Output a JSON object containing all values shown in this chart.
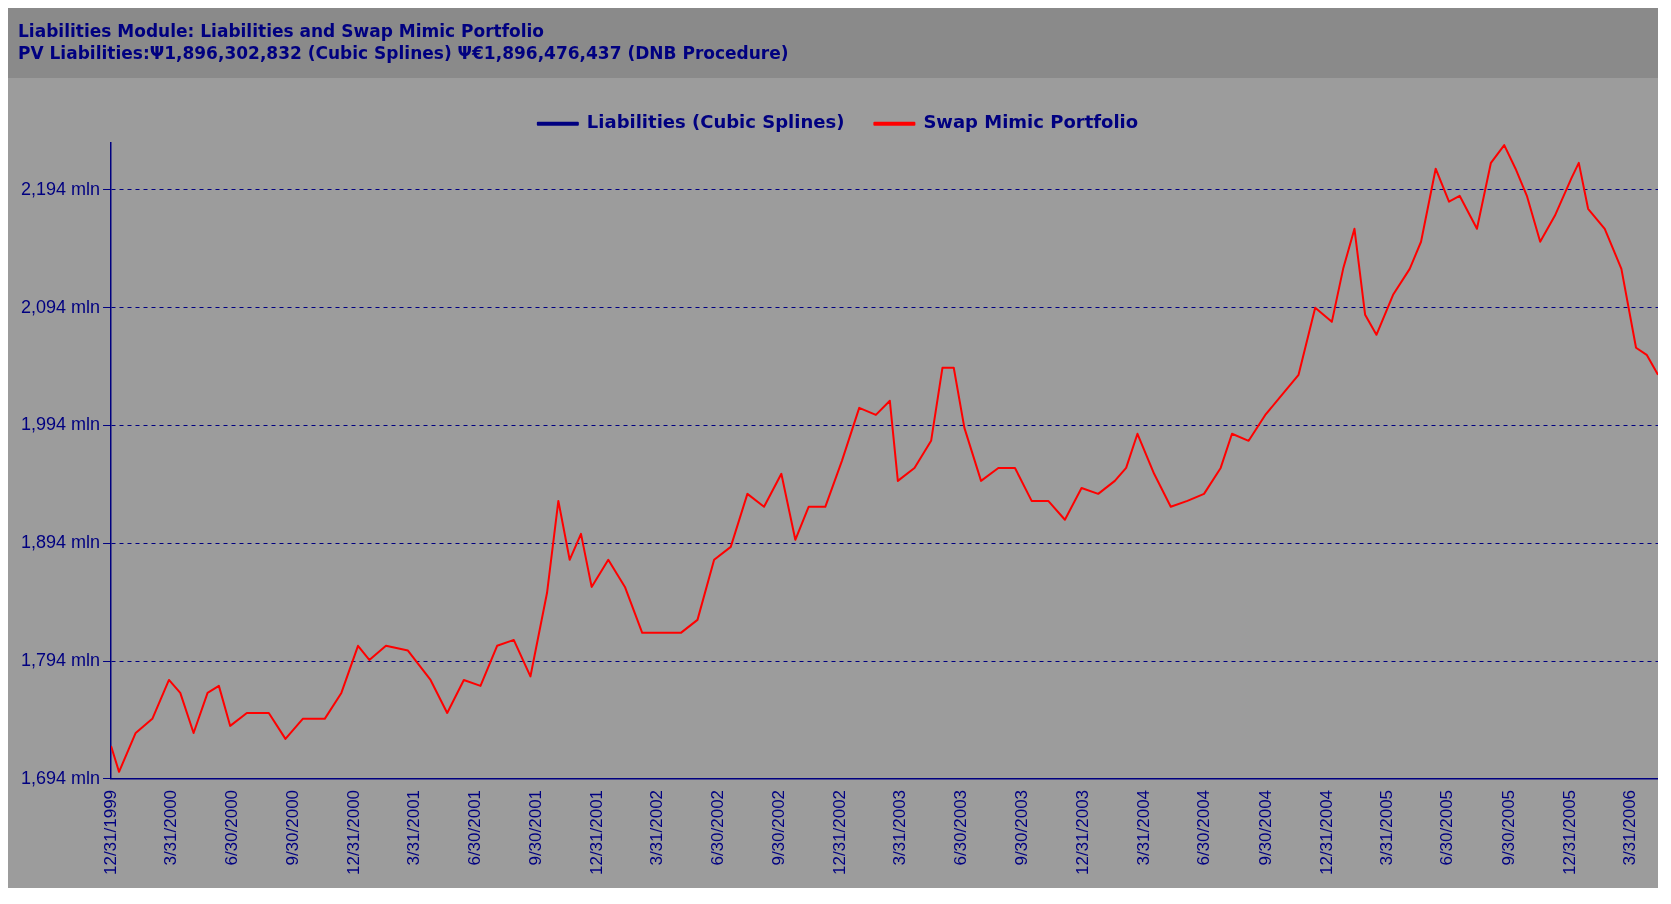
{
  "chart_data": {
    "type": "line",
    "title": "Liabilities Module: Liabilities and Swap Mimic Portfolio",
    "subtitle": "PV Liabilities:Ψ1,896,302,832 (Cubic Splines) Ψ€1,896,476,437 (DNB Procedure)",
    "x": [
      "1999-12-31",
      "2000-01-12",
      "2000-02-06",
      "2000-03-02",
      "2000-03-27",
      "2000-04-13",
      "2000-05-03",
      "2000-05-24",
      "2000-06-10",
      "2000-06-27",
      "2000-07-22",
      "2000-08-24",
      "2000-09-18",
      "2000-10-14",
      "2000-11-16",
      "2000-12-11",
      "2001-01-05",
      "2001-01-22",
      "2001-02-16",
      "2001-03-21",
      "2001-04-24",
      "2001-05-19",
      "2001-06-13",
      "2001-07-08",
      "2001-08-02",
      "2001-08-27",
      "2001-09-21",
      "2001-10-16",
      "2001-11-02",
      "2001-11-19",
      "2001-12-06",
      "2001-12-22",
      "2002-01-16",
      "2002-02-10",
      "2002-03-08",
      "2002-04-02",
      "2002-05-05",
      "2002-05-30",
      "2002-06-24",
      "2002-07-19",
      "2002-08-13",
      "2002-09-07",
      "2002-10-03",
      "2002-10-24",
      "2002-11-13",
      "2002-12-08",
      "2003-01-02",
      "2003-01-28",
      "2003-02-22",
      "2003-03-15",
      "2003-03-27",
      "2003-04-21",
      "2003-05-16",
      "2003-06-02",
      "2003-06-19",
      "2003-07-05",
      "2003-07-30",
      "2003-08-25",
      "2003-09-19",
      "2003-10-14",
      "2003-11-08",
      "2003-12-03",
      "2003-12-28",
      "2004-01-22",
      "2004-02-16",
      "2004-03-04",
      "2004-03-21",
      "2004-04-15",
      "2004-05-10",
      "2004-06-04",
      "2004-06-29",
      "2004-07-24",
      "2004-08-10",
      "2004-09-04",
      "2004-09-29",
      "2004-10-24",
      "2004-11-18",
      "2004-12-13",
      "2005-01-07",
      "2005-01-24",
      "2005-02-10",
      "2005-02-26",
      "2005-03-15",
      "2005-04-09",
      "2005-05-04",
      "2005-05-21",
      "2005-06-12",
      "2005-07-02",
      "2005-07-18",
      "2005-08-13",
      "2005-09-03",
      "2005-09-23",
      "2005-10-10",
      "2005-10-27",
      "2005-11-16",
      "2005-12-08",
      "2006-01-02",
      "2006-01-13",
      "2006-01-27",
      "2006-02-21",
      "2006-03-18",
      "2006-04-09",
      "2006-04-25",
      "2006-05-12"
    ],
    "series": [
      {
        "name": "Liabilities (Cubic Splines)",
        "color": "#000080",
        "values": [
          null,
          null,
          null,
          null,
          null,
          null,
          null,
          null,
          null,
          null,
          null,
          null,
          null,
          null,
          null,
          null,
          null,
          null,
          null,
          null,
          null,
          null,
          null,
          null,
          null,
          null,
          null,
          null,
          null,
          null,
          null,
          null,
          null,
          null,
          null,
          null,
          null,
          null,
          null,
          null,
          null,
          null,
          null,
          null,
          null,
          null,
          null,
          null,
          null,
          null,
          null,
          null,
          null,
          null,
          null,
          null,
          null,
          null,
          null,
          null,
          null,
          null,
          null,
          null,
          null,
          null,
          null,
          null,
          null,
          null,
          null,
          null,
          null,
          null,
          null,
          null,
          null,
          null,
          null,
          null,
          null,
          null,
          null,
          null,
          null,
          null,
          null,
          null,
          null,
          null,
          null,
          null,
          null,
          null,
          null,
          null,
          null,
          null,
          null,
          null,
          null,
          null,
          null,
          null
        ]
      },
      {
        "name": "Swap Mimic Portfolio",
        "color": "#ff0000",
        "values": [
          1722,
          1700,
          1733,
          1745,
          1778,
          1767,
          1733,
          1767,
          1773,
          1739,
          1750,
          1750,
          1728,
          1745,
          1745,
          1767,
          1807,
          1795,
          1807,
          1803,
          1778,
          1750,
          1778,
          1773,
          1807,
          1812,
          1781,
          1852,
          1930,
          1880,
          1902,
          1857,
          1880,
          1857,
          1818,
          1818,
          1818,
          1829,
          1880,
          1891,
          1936,
          1925,
          1953,
          1897,
          1925,
          1925,
          1964,
          2009,
          2003,
          2015,
          1947,
          1958,
          1981,
          2043,
          2043,
          1992,
          1947,
          1958,
          1958,
          1930,
          1930,
          1914,
          1941,
          1936,
          1947,
          1958,
          1987,
          1953,
          1925,
          1930,
          1936,
          1958,
          1987,
          1981,
          2003,
          2020,
          2037,
          2094,
          2082,
          2127,
          2161,
          2088,
          2071,
          2105,
          2127,
          2150,
          2212,
          2184,
          2189,
          2161,
          2217,
          2232,
          2212,
          2189,
          2150,
          2172,
          2204,
          2217,
          2178,
          2161,
          2127,
          2060,
          2054,
          2037
        ]
      }
    ],
    "xlim": [
      "1999-12-31",
      "2006-05-12"
    ],
    "xticks": [
      {
        "value": "1999-12-31",
        "label": "12/31/1999"
      },
      {
        "value": "2000-03-31",
        "label": "3/31/2000"
      },
      {
        "value": "2000-06-30",
        "label": "6/30/2000"
      },
      {
        "value": "2000-09-30",
        "label": "9/30/2000"
      },
      {
        "value": "2000-12-31",
        "label": "12/31/2000"
      },
      {
        "value": "2001-03-31",
        "label": "3/31/2001"
      },
      {
        "value": "2001-06-30",
        "label": "6/30/2001"
      },
      {
        "value": "2001-09-30",
        "label": "9/30/2001"
      },
      {
        "value": "2001-12-31",
        "label": "12/31/2001"
      },
      {
        "value": "2002-03-31",
        "label": "3/31/2002"
      },
      {
        "value": "2002-06-30",
        "label": "6/30/2002"
      },
      {
        "value": "2002-09-30",
        "label": "9/30/2002"
      },
      {
        "value": "2002-12-31",
        "label": "12/31/2002"
      },
      {
        "value": "2003-03-31",
        "label": "3/31/2003"
      },
      {
        "value": "2003-06-30",
        "label": "6/30/2003"
      },
      {
        "value": "2003-09-30",
        "label": "9/30/2003"
      },
      {
        "value": "2003-12-31",
        "label": "12/31/2003"
      },
      {
        "value": "2004-03-31",
        "label": "3/31/2004"
      },
      {
        "value": "2004-06-30",
        "label": "6/30/2004"
      },
      {
        "value": "2004-09-30",
        "label": "9/30/2004"
      },
      {
        "value": "2004-12-31",
        "label": "12/31/2004"
      },
      {
        "value": "2005-03-31",
        "label": "3/31/2005"
      },
      {
        "value": "2005-06-30",
        "label": "6/30/2005"
      },
      {
        "value": "2005-09-30",
        "label": "9/30/2005"
      },
      {
        "value": "2005-12-31",
        "label": "12/31/2005"
      },
      {
        "value": "2006-03-31",
        "label": "3/31/2006"
      }
    ],
    "ylim": [
      1694,
      2234
    ],
    "yticks": [
      {
        "value": 1694,
        "label": "1,694 mln"
      },
      {
        "value": 1794,
        "label": "1,794 mln"
      },
      {
        "value": 1894,
        "label": "1,894 mln"
      },
      {
        "value": 1994,
        "label": "1,994 mln"
      },
      {
        "value": 2094,
        "label": "2,094 mln"
      },
      {
        "value": 2194,
        "label": "2,194 mln"
      }
    ],
    "grid": "y",
    "legend": "top",
    "marker": "none",
    "line_style": "solid"
  }
}
